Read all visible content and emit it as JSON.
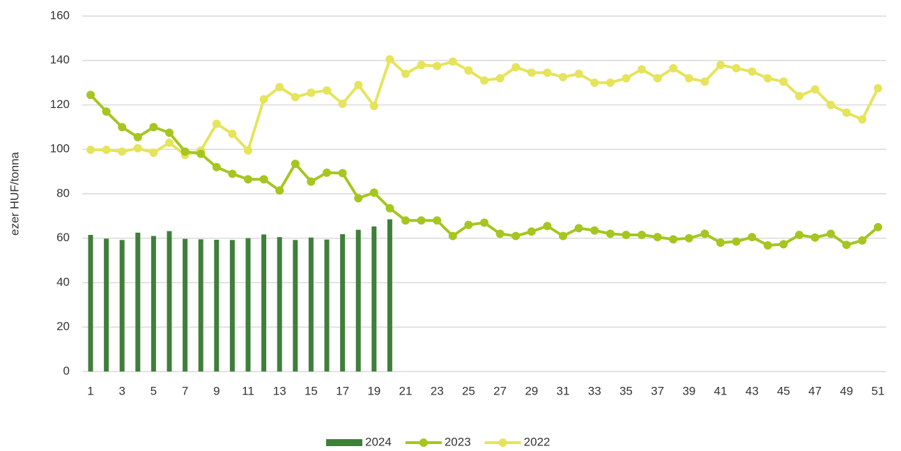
{
  "chart_data": {
    "type": "combo",
    "y_label": "ezer HUF/tonna",
    "categories": [
      "1",
      null,
      "3",
      null,
      "5",
      null,
      "7",
      null,
      "9",
      null,
      "11",
      null,
      "13",
      null,
      "15",
      null,
      "17",
      null,
      "19",
      null,
      "21",
      null,
      "23",
      null,
      "25",
      null,
      "27",
      null,
      "29",
      null,
      "31",
      null,
      "33",
      null,
      "35",
      null,
      "37",
      null,
      "39",
      null,
      "41",
      null,
      "43",
      null,
      "45",
      null,
      "47",
      null,
      "49",
      null,
      "51"
    ],
    "ylim": [
      0,
      160
    ],
    "yticks": [
      0,
      20,
      40,
      60,
      80,
      100,
      120,
      140,
      160
    ],
    "grid": true,
    "legend": "bottom",
    "series": [
      {
        "name": "2024",
        "type": "bar",
        "color": "#3f7f3a",
        "values": [
          61.5,
          59.8,
          59.2,
          62.5,
          61,
          63.2,
          59.7,
          59.5,
          59.3,
          59.2,
          60,
          61.7,
          60.5,
          59.2,
          60.3,
          59.4,
          61.8,
          63.8,
          65.3,
          68.5,
          null,
          null,
          null,
          null,
          null,
          null,
          null,
          null,
          null,
          null,
          null,
          null,
          null,
          null,
          null,
          null,
          null,
          null,
          null,
          null,
          null,
          null,
          null,
          null,
          null,
          null,
          null,
          null,
          null,
          null,
          null
        ]
      },
      {
        "name": "2023",
        "type": "line",
        "color": "#a5c61f",
        "values": [
          124.5,
          117,
          110,
          105.5,
          110,
          107.5,
          99,
          98,
          92,
          89,
          86.5,
          86.5,
          81.5,
          93.5,
          85.5,
          89.5,
          89.3,
          78,
          80.5,
          73.5,
          68,
          68,
          68,
          61,
          66,
          67,
          62,
          61,
          63,
          65.5,
          61,
          64.5,
          63.5,
          62,
          61.5,
          61.5,
          60.5,
          59.5,
          60,
          62,
          58,
          58.5,
          60.5,
          56.8,
          57.3,
          61.5,
          60.3,
          62,
          57,
          59,
          65
        ]
      },
      {
        "name": "2022",
        "type": "line",
        "color": "#e5e45a",
        "values": [
          99.8,
          99.8,
          99,
          100.5,
          98.5,
          103,
          97.5,
          99.5,
          111.5,
          107,
          99.5,
          122.5,
          128,
          123.5,
          125.5,
          126.5,
          120.5,
          129,
          119.5,
          140.5,
          134,
          138,
          137.5,
          139.5,
          135.5,
          131,
          132,
          137,
          134.5,
          134.5,
          132.5,
          134,
          130,
          130,
          132,
          136,
          132,
          136.5,
          132,
          130.5,
          138,
          136.5,
          135,
          132,
          130.5,
          124,
          127,
          120,
          116.5,
          113.5,
          127.5
        ]
      }
    ]
  }
}
